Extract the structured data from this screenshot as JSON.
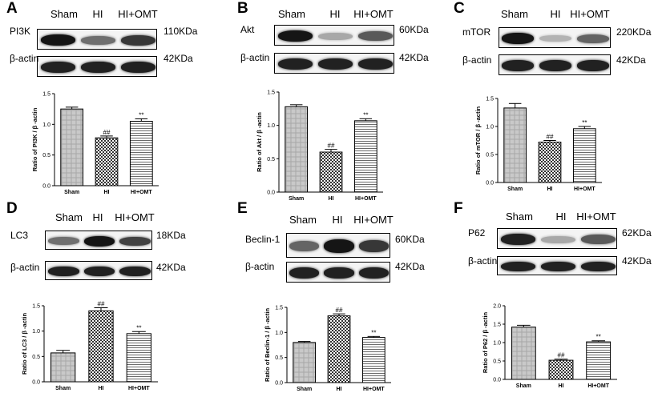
{
  "figure": {
    "panels": [
      {
        "letter": "A",
        "lanes": [
          "Sham",
          "HI",
          "HI+OMT"
        ],
        "blots": [
          {
            "protein": "PI3K",
            "kda": "110KDa",
            "intensities": [
              0.95,
              0.55,
              0.8
            ]
          },
          {
            "protein": "β-actin",
            "kda": "42KDa",
            "intensities": [
              0.9,
              0.9,
              0.9
            ]
          }
        ],
        "chart_data": {
          "type": "bar",
          "categories": [
            "Sham",
            "HI",
            "HI+OMT"
          ],
          "values": [
            1.25,
            0.78,
            1.05
          ],
          "errors": [
            0.03,
            0.03,
            0.04
          ],
          "annotations": [
            "",
            "##",
            "**"
          ],
          "ylabel": "Ratio of PI3K / β -actin",
          "ylim": [
            0,
            1.5
          ],
          "yticks": [
            "0.0",
            "0.5",
            "1.0",
            "1.5"
          ]
        }
      },
      {
        "letter": "B",
        "lanes": [
          "Sham",
          "HI",
          "HI+OMT"
        ],
        "blots": [
          {
            "protein": "Akt",
            "kda": "60KDa",
            "intensities": [
              0.95,
              0.3,
              0.65
            ]
          },
          {
            "protein": "β-actin",
            "kda": "42KDa",
            "intensities": [
              0.9,
              0.9,
              0.9
            ]
          }
        ],
        "chart_data": {
          "type": "bar",
          "categories": [
            "Sham",
            "HI",
            "HI+OMT"
          ],
          "values": [
            1.28,
            0.6,
            1.07
          ],
          "errors": [
            0.03,
            0.04,
            0.03
          ],
          "annotations": [
            "",
            "##",
            "**"
          ],
          "ylabel": "Ratio of Akt / β -actin",
          "ylim": [
            0,
            1.5
          ],
          "yticks": [
            "0.0",
            "0.5",
            "1.0",
            "1.5"
          ]
        }
      },
      {
        "letter": "C",
        "lanes": [
          "Sham",
          "HI",
          "HI+OMT"
        ],
        "blots": [
          {
            "protein": "mTOR",
            "kda": "220KDa",
            "intensities": [
              0.95,
              0.25,
              0.6
            ]
          },
          {
            "protein": "β-actin",
            "kda": "42KDa",
            "intensities": [
              0.9,
              0.9,
              0.9
            ]
          }
        ],
        "chart_data": {
          "type": "bar",
          "categories": [
            "Sham",
            "HI",
            "HI+OMT"
          ],
          "values": [
            1.33,
            0.72,
            0.96
          ],
          "errors": [
            0.08,
            0.03,
            0.04
          ],
          "annotations": [
            "",
            "##",
            "**"
          ],
          "ylabel": "Ratio of mTOR / β -actin",
          "ylim": [
            0,
            1.5
          ],
          "yticks": [
            "0.0",
            "0.5",
            "1.0",
            "1.5"
          ]
        }
      },
      {
        "letter": "D",
        "lanes": [
          "Sham",
          "HI",
          "HI+OMT"
        ],
        "blots": [
          {
            "protein": "LC3",
            "kda": "18KDa",
            "intensities": [
              0.55,
              0.95,
              0.75
            ]
          },
          {
            "protein": "β-actin",
            "kda": "42KDa",
            "intensities": [
              0.9,
              0.9,
              0.9
            ]
          }
        ],
        "chart_data": {
          "type": "bar",
          "categories": [
            "Sham",
            "HI",
            "HI+OMT"
          ],
          "values": [
            0.57,
            1.4,
            0.95
          ],
          "errors": [
            0.05,
            0.06,
            0.04
          ],
          "annotations": [
            "",
            "##",
            "**"
          ],
          "ylabel": "Ratio of LC3 / β -actin",
          "ylim": [
            0,
            1.5
          ],
          "yticks": [
            "0.0",
            "0.5",
            "1.0",
            "1.5"
          ]
        }
      },
      {
        "letter": "E",
        "lanes": [
          "Sham",
          "HI",
          "HI+OMT"
        ],
        "blots": [
          {
            "protein": "Beclin-1",
            "kda": "60KDa",
            "intensities": [
              0.6,
              0.95,
              0.8
            ]
          },
          {
            "protein": "β-actin",
            "kda": "42KDa",
            "intensities": [
              0.9,
              0.9,
              0.9
            ]
          }
        ],
        "chart_data": {
          "type": "bar",
          "categories": [
            "Sham",
            "HI",
            "HI+OMT"
          ],
          "values": [
            0.8,
            1.33,
            0.9
          ],
          "errors": [
            0.02,
            0.04,
            0.02
          ],
          "annotations": [
            "",
            "##",
            "**"
          ],
          "ylabel": "Ratio of Beclin-1 / β -actin",
          "ylim": [
            0,
            1.5
          ],
          "yticks": [
            "0.0",
            "0.5",
            "1.0",
            "1.5"
          ]
        }
      },
      {
        "letter": "F",
        "lanes": [
          "Sham",
          "HI",
          "HI+OMT"
        ],
        "blots": [
          {
            "protein": "P62",
            "kda": "62KDa",
            "intensities": [
              0.9,
              0.3,
              0.65
            ]
          },
          {
            "protein": "β-actin",
            "kda": "42KDa",
            "intensities": [
              0.9,
              0.9,
              0.9
            ]
          }
        ],
        "chart_data": {
          "type": "bar",
          "categories": [
            "Sham",
            "HI",
            "HI+OMT"
          ],
          "values": [
            1.42,
            0.52,
            1.02
          ],
          "errors": [
            0.05,
            0.03,
            0.03
          ],
          "annotations": [
            "",
            "##",
            "**"
          ],
          "ylabel": "Ratio of P62 / β -actin",
          "ylim": [
            0,
            2.0
          ],
          "yticks": [
            "0.0",
            "0.5",
            "1.0",
            "1.5",
            "2.0"
          ]
        }
      }
    ]
  }
}
